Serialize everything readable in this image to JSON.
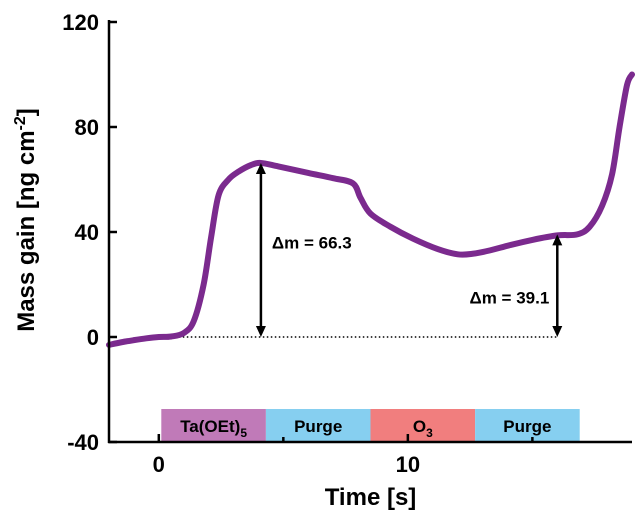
{
  "chart_data": {
    "type": "line",
    "xlabel": "Time [s]",
    "ylabel_main": "Mass gain [ng cm",
    "ylabel_sup": "-2",
    "ylabel_end": "]",
    "xlim": [
      -2,
      19
    ],
    "ylim": [
      -40,
      120
    ],
    "xticks": [
      0,
      10
    ],
    "yticks": [
      -40,
      0,
      40,
      80,
      120
    ],
    "grid": false,
    "series": [
      {
        "color": "#7b2a8e",
        "points": [
          [
            -2.0,
            -3
          ],
          [
            -1.5,
            -2
          ],
          [
            -1.0,
            -1.2
          ],
          [
            -0.5,
            -0.5
          ],
          [
            0.0,
            0
          ],
          [
            0.5,
            0.2
          ],
          [
            1.0,
            1.5
          ],
          [
            1.4,
            6
          ],
          [
            1.8,
            20
          ],
          [
            2.1,
            38
          ],
          [
            2.4,
            54
          ],
          [
            2.8,
            60
          ],
          [
            3.2,
            63
          ],
          [
            3.7,
            65.5
          ],
          [
            4.1,
            66.3
          ],
          [
            4.8,
            65
          ],
          [
            6.0,
            62.5
          ],
          [
            7.0,
            60.5
          ],
          [
            7.8,
            58.5
          ],
          [
            8.1,
            53
          ],
          [
            8.5,
            47
          ],
          [
            9.3,
            42
          ],
          [
            10.2,
            37.5
          ],
          [
            11.2,
            33.5
          ],
          [
            12.0,
            31.5
          ],
          [
            12.6,
            31.7
          ],
          [
            13.3,
            33
          ],
          [
            14.1,
            35
          ],
          [
            15.0,
            37
          ],
          [
            16.0,
            38.7
          ],
          [
            16.8,
            39.1
          ],
          [
            17.3,
            42
          ],
          [
            17.8,
            50
          ],
          [
            18.2,
            62
          ],
          [
            18.5,
            80
          ],
          [
            18.8,
            96
          ],
          [
            19.0,
            100
          ]
        ]
      }
    ],
    "baseline": {
      "y": 0,
      "x_from": 0,
      "x_to": 16,
      "style": "dotted"
    },
    "annotations": [
      {
        "label": "Δm = 66.3",
        "x": 4.1,
        "y_from": 0,
        "y_to": 66.3
      },
      {
        "label": "Δm = 39.1",
        "x": 16,
        "y_from": 0,
        "y_to": 39.1
      }
    ],
    "phases": [
      {
        "label": "Ta(OEt)",
        "sub": "5",
        "x_from": 0.1,
        "x_to": 4.3,
        "color": "#c07ab8"
      },
      {
        "label": "Purge",
        "sub": "",
        "x_from": 4.3,
        "x_to": 8.5,
        "color": "#86cff0"
      },
      {
        "label": "O",
        "sub": "3",
        "x_from": 8.5,
        "x_to": 12.7,
        "color": "#f17e7e"
      },
      {
        "label": "Purge",
        "sub": "",
        "x_from": 12.7,
        "x_to": 16.9,
        "color": "#86cff0"
      }
    ]
  }
}
